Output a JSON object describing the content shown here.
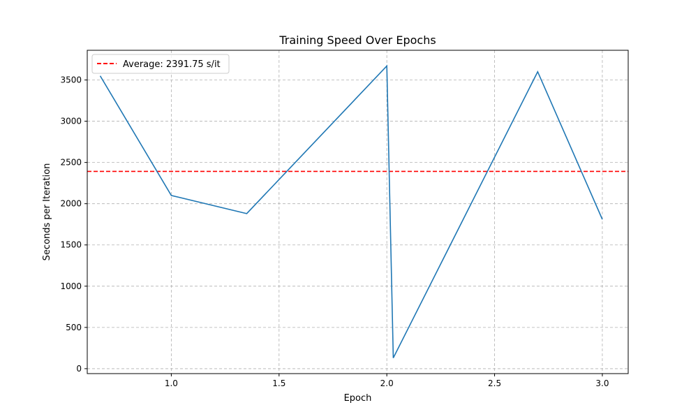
{
  "chart_data": {
    "type": "line",
    "title": "Training Speed Over Epochs",
    "xlabel": "Epoch",
    "ylabel": "Seconds per Iteration",
    "xlim": [
      0.61,
      3.12
    ],
    "ylim": [
      -60,
      3860
    ],
    "xticks": [
      1.0,
      1.5,
      2.0,
      2.5,
      3.0
    ],
    "xtick_labels": [
      "1.0",
      "1.5",
      "2.0",
      "2.5",
      "3.0"
    ],
    "yticks": [
      0,
      500,
      1000,
      1500,
      2000,
      2500,
      3000,
      3500
    ],
    "ytick_labels": [
      "0",
      "500",
      "1000",
      "1500",
      "2000",
      "2500",
      "3000",
      "3500"
    ],
    "grid": true,
    "series": [
      {
        "color": "#1f77b4",
        "x": [
          0.67,
          1.0,
          1.35,
          2.0,
          2.03,
          2.7,
          3.0
        ],
        "y": [
          3550,
          2100,
          1880,
          3670,
          130,
          3600,
          1810
        ]
      }
    ],
    "reference_line": {
      "orientation": "horizontal",
      "value": 2391.75,
      "label": "Average: 2391.75 s/it",
      "color": "#ff0000",
      "style": "dashed"
    },
    "legend": {
      "position": "top-left",
      "entries": [
        "Average: 2391.75 s/it"
      ]
    }
  }
}
